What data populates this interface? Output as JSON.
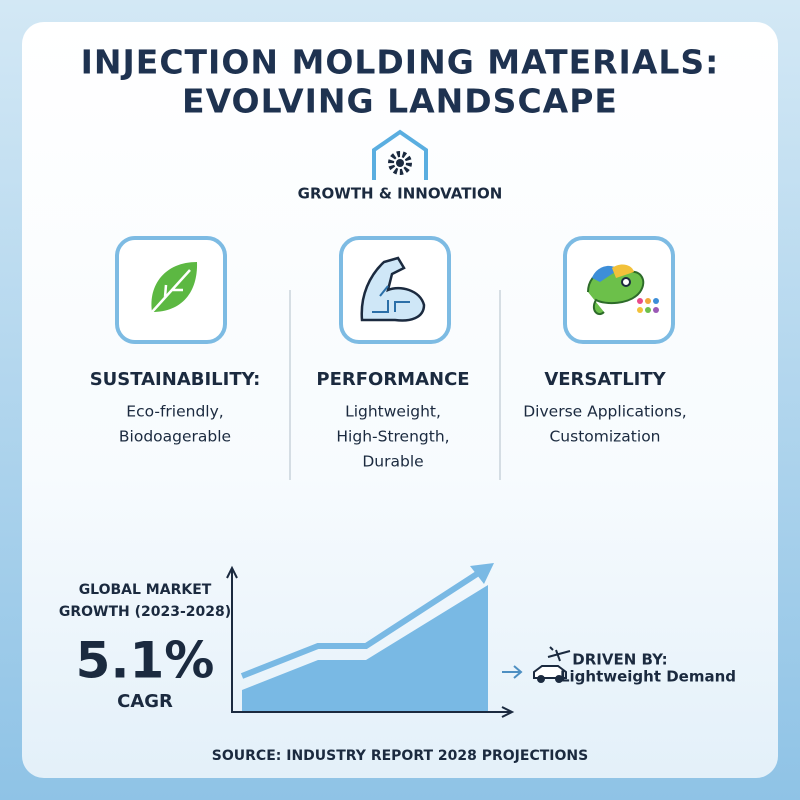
{
  "header": {
    "title": [
      "INJECTION MOLDING MATERIALS:",
      "EVOLVING LANDSCAPE"
    ],
    "subtitle": "GROWTH & INNOVATION"
  },
  "pillars": [
    {
      "heading": "SUSTAINABILITY:",
      "lines": [
        "Eco-friendly,",
        "Biodoagerable"
      ]
    },
    {
      "heading": "PERFORMANCE",
      "lines": [
        "Lightweight,",
        "High-Strength,",
        "Durable"
      ]
    },
    {
      "heading": "VERSATLITY",
      "lines": [
        "Diverse Applications,",
        "Customization"
      ]
    }
  ],
  "market": {
    "label": [
      "GLOBAL MARKET",
      "GROWTH (2023-2028)"
    ],
    "value": "5.1%",
    "unit": "CAGR"
  },
  "driver": {
    "label": "DRIVEN BY:",
    "text": "Lightweight Demand"
  },
  "source": "SOURCE: INDUSTRY REPORT 2028 PROJECTIONS"
}
